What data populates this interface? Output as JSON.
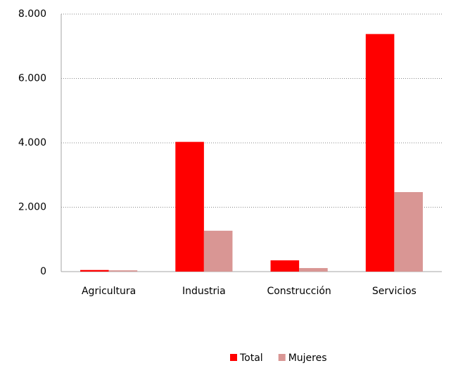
{
  "chart_data": {
    "type": "bar",
    "categories": [
      "Agricultura",
      "Industria",
      "Construcción",
      "Servicios"
    ],
    "series": [
      {
        "name": "Total",
        "color": "#ff0000",
        "values": [
          50,
          4030,
          350,
          7380
        ]
      },
      {
        "name": "Mujeres",
        "color": "#d99694",
        "values": [
          40,
          1270,
          110,
          2470
        ]
      }
    ],
    "ylim": [
      0,
      8000
    ],
    "yticks": [
      0,
      {
        "value": 2000,
        "label": "2.000"
      },
      {
        "value": 4000,
        "label": "4.000"
      },
      {
        "value": 6000,
        "label": "6.000"
      },
      {
        "value": 8000,
        "label": "8.000"
      }
    ],
    "grid": true,
    "legend": "bottom"
  }
}
